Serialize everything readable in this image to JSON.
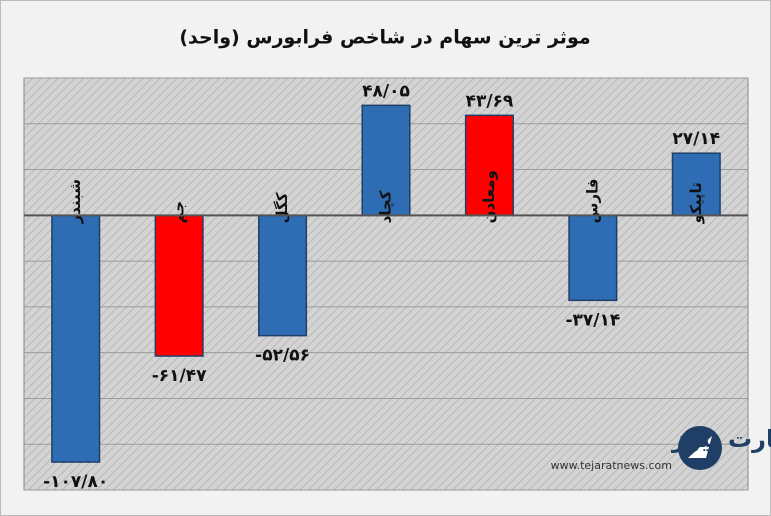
{
  "chart_data": {
    "type": "bar",
    "title": "موثر ترین سهام در شاخص فرابورس (واحد)",
    "categories": [
      "شبندر",
      "جم",
      "کگل",
      "کچاد",
      "ومعادن",
      "فارس",
      "تاپیکو"
    ],
    "values": [
      -107.8,
      -61.47,
      -52.56,
      48.05,
      43.69,
      -37.14,
      27.14
    ],
    "value_labels": [
      "-۱۰۷/۸۰",
      "-۶۱/۴۷",
      "-۵۲/۵۶",
      "۴۸/۰۵",
      "۴۳/۶۹",
      "-۳۷/۱۴",
      "۲۷/۱۴"
    ],
    "colors": [
      "#2e6db4",
      "#ff0000",
      "#2e6db4",
      "#2e6db4",
      "#ff0000",
      "#2e6db4",
      "#2e6db4"
    ],
    "ylim": [
      -120,
      60
    ],
    "yticks": [
      -120,
      -100,
      -80,
      -60,
      -40,
      -20,
      0,
      20,
      40,
      60
    ],
    "grid": true
  },
  "logo": {
    "name": "تجارت نیوز",
    "url": "www.tejaratnews.com"
  }
}
